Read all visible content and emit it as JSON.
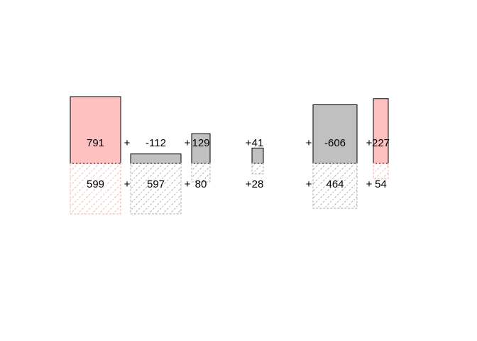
{
  "chart_data": {
    "type": "bar",
    "title": "",
    "xlabel": "",
    "ylabel": "",
    "grid": false,
    "operator": "+",
    "top_row": {
      "values": [
        791,
        -112,
        129,
        41,
        -606,
        227
      ],
      "labels": [
        "791",
        "-112",
        "129",
        "41",
        "-606",
        "227"
      ],
      "colors": [
        "#ffc0c0",
        "#c0c0c0",
        "#c0c0c0",
        "#c0c0c0",
        "#c0c0c0",
        "#ffc0c0"
      ],
      "style": "solid"
    },
    "bottom_row": {
      "values": [
        599,
        597,
        80,
        28,
        464,
        54
      ],
      "labels": [
        "599",
        "597",
        "80",
        "28",
        "464",
        "54"
      ],
      "colors": [
        "#ffc0c0",
        "#c0c0c0",
        "#c0c0c0",
        "#c0c0c0",
        "#c0c0c0",
        "#ffc0c0"
      ],
      "style": "hatched"
    },
    "stroke_color": "#000000",
    "hatch_color_pink": "#ffb0b0",
    "hatch_color_gray": "#b0b0b0"
  }
}
